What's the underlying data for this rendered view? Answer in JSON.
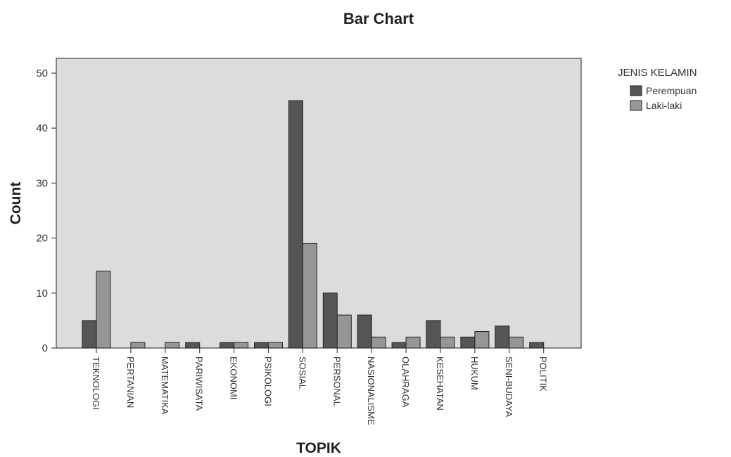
{
  "chart_data": {
    "type": "bar",
    "title": "Bar Chart",
    "xlabel": "TOPIK",
    "ylabel": "Count",
    "ylim": [
      0,
      50
    ],
    "yticks": [
      0,
      10,
      20,
      30,
      40,
      50
    ],
    "grid": false,
    "legend_position": "right",
    "legend_title": "JENIS KELAMIN",
    "categories": [
      "TEKNOLOGI",
      "PERTANIAN",
      "MATEMATIKA",
      "PARIWISATA",
      "EKONOMI",
      "PSIKOLOGI",
      "SOSIAL",
      "PERSONAL",
      "NASIONALISME",
      "OLAHRAGA",
      "KESEHATAN",
      "HUKUM",
      "SENI-BUDAYA",
      "POLITIK"
    ],
    "series": [
      {
        "name": "Perempuan",
        "color": "#555555",
        "values": [
          5,
          0,
          0,
          1,
          1,
          1,
          45,
          10,
          6,
          1,
          5,
          2,
          4,
          1
        ]
      },
      {
        "name": "Laki-laki",
        "color": "#969696",
        "values": [
          14,
          1,
          1,
          0,
          1,
          1,
          19,
          6,
          2,
          2,
          2,
          3,
          2,
          0
        ]
      }
    ]
  }
}
